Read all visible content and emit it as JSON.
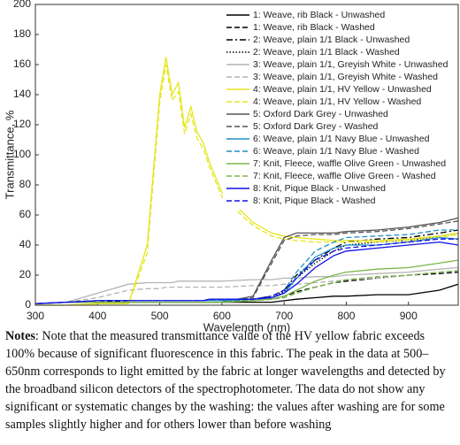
{
  "chart_data": {
    "type": "line",
    "ylabel": "Transmittance, %",
    "xlabel": "Wavelength (nm)",
    "xlim": [
      300,
      980
    ],
    "ylim": [
      0,
      200
    ],
    "xticks": [
      300,
      400,
      500,
      600,
      700,
      800,
      900
    ],
    "yticks": [
      0,
      20,
      40,
      60,
      80,
      100,
      120,
      140,
      160,
      180,
      200
    ],
    "legend": "upper right",
    "x": [
      300,
      350,
      400,
      450,
      480,
      500,
      510,
      520,
      530,
      540,
      550,
      560,
      570,
      580,
      600,
      650,
      680,
      700,
      720,
      750,
      780,
      800,
      850,
      900,
      950,
      980
    ],
    "series": [
      {
        "name": "1: Weave, rib Black - Unwashed",
        "color": "#000000",
        "dash": "solid",
        "values": [
          1,
          2,
          2,
          2,
          2,
          2,
          2,
          2,
          2,
          2,
          2,
          2,
          2,
          2,
          2,
          2,
          2,
          3,
          4,
          5,
          6,
          6,
          7,
          7,
          10,
          14
        ]
      },
      {
        "name": "1: Weave, rib Black - Washed",
        "color": "#000000",
        "dash": "dashed",
        "values": [
          1,
          2,
          2,
          3,
          3,
          3,
          3,
          3,
          3,
          3,
          3,
          3,
          3,
          3,
          3,
          3,
          4,
          6,
          9,
          12,
          15,
          16,
          18,
          20,
          21,
          22
        ]
      },
      {
        "name": "2: Weave, plain 1/1 Black - Unwashed",
        "color": "#000000",
        "dash": "dashdot",
        "values": [
          1,
          2,
          3,
          3,
          3,
          3,
          3,
          3,
          3,
          3,
          3,
          3,
          3,
          3,
          3,
          4,
          6,
          10,
          20,
          30,
          38,
          42,
          44,
          45,
          48,
          50
        ]
      },
      {
        "name": "2: Weave, plain 1/1 Black - Washed",
        "color": "#000000",
        "dash": "dotted",
        "values": [
          1,
          2,
          3,
          3,
          3,
          3,
          3,
          3,
          3,
          3,
          3,
          3,
          3,
          3,
          3,
          4,
          5,
          9,
          18,
          28,
          36,
          40,
          42,
          43,
          46,
          48
        ]
      },
      {
        "name": "3: Weave, plain 1/1, Greyish White - Unwashed",
        "color": "#b4b4b4",
        "dash": "solid",
        "values": [
          1,
          2,
          8,
          14,
          15,
          15,
          15,
          15,
          16,
          16,
          16,
          16,
          16,
          16,
          16,
          17,
          17,
          18,
          18,
          19,
          19,
          20,
          21,
          22,
          24,
          25
        ]
      },
      {
        "name": "3: Weave, plain 1/1, Greyish White - Washed",
        "color": "#b4b4b4",
        "dash": "dashed",
        "values": [
          1,
          2,
          5,
          10,
          11,
          11,
          12,
          12,
          12,
          12,
          12,
          12,
          12,
          12,
          12,
          13,
          13,
          14,
          14,
          15,
          16,
          17,
          18,
          20,
          22,
          23
        ]
      },
      {
        "name": "4: Weave, plain 1/1, HV Yellow - Unwashed",
        "color": "#e6e61e",
        "dash": "solid",
        "values": [
          0,
          0,
          1,
          1,
          40,
          140,
          165,
          140,
          148,
          118,
          132,
          115,
          108,
          95,
          75,
          55,
          48,
          46,
          45,
          44,
          43,
          43,
          43,
          44,
          46,
          48
        ]
      },
      {
        "name": "4: Weave, plain 1/1, HV Yellow - Washed",
        "color": "#e6e61e",
        "dash": "dashed",
        "values": [
          0,
          0,
          1,
          1,
          35,
          135,
          160,
          136,
          142,
          114,
          127,
          111,
          104,
          92,
          72,
          53,
          46,
          44,
          43,
          42,
          42,
          42,
          42,
          43,
          45,
          47
        ]
      },
      {
        "name": "5: Oxford Dark Grey - Unwashed",
        "color": "#555555",
        "dash": "solid",
        "values": [
          1,
          2,
          2,
          2,
          2,
          2,
          2,
          2,
          2,
          2,
          2,
          2,
          2,
          2,
          2,
          6,
          30,
          45,
          48,
          48,
          48,
          49,
          50,
          52,
          55,
          58
        ]
      },
      {
        "name": "5: Oxford Dark Grey - Washed",
        "color": "#555555",
        "dash": "dashed",
        "values": [
          1,
          2,
          2,
          2,
          2,
          2,
          2,
          2,
          2,
          2,
          2,
          2,
          2,
          2,
          2,
          5,
          28,
          43,
          46,
          47,
          47,
          48,
          49,
          51,
          54,
          56
        ]
      },
      {
        "name": "6: Weave, plain 1/1 Navy Blue - Unwashed",
        "color": "#1f8ec8",
        "dash": "solid",
        "values": [
          1,
          2,
          3,
          3,
          3,
          3,
          3,
          3,
          3,
          3,
          3,
          3,
          3,
          3,
          3,
          4,
          5,
          8,
          18,
          32,
          38,
          40,
          40,
          42,
          45,
          44
        ]
      },
      {
        "name": "6: Weave, plain 1/1 Navy Blue - Washed",
        "color": "#1f8ec8",
        "dash": "dashed",
        "values": [
          1,
          2,
          3,
          3,
          3,
          3,
          3,
          3,
          3,
          3,
          3,
          3,
          3,
          3,
          3,
          4,
          6,
          10,
          22,
          36,
          42,
          45,
          46,
          47,
          50,
          50
        ]
      },
      {
        "name": "7: Knit, Fleece, waffle Olive Green - Unwashed",
        "color": "#7ab648",
        "dash": "solid",
        "values": [
          1,
          2,
          2,
          2,
          2,
          2,
          2,
          2,
          2,
          2,
          2,
          2,
          2,
          2,
          2,
          3,
          4,
          6,
          10,
          16,
          20,
          22,
          24,
          25,
          28,
          30
        ]
      },
      {
        "name": "7: Knit, Fleece, waffle Olive Green - Washed",
        "color": "#7ab648",
        "dash": "dashed",
        "values": [
          1,
          2,
          2,
          2,
          2,
          2,
          2,
          2,
          2,
          2,
          2,
          2,
          2,
          2,
          2,
          3,
          4,
          5,
          8,
          12,
          15,
          17,
          19,
          20,
          22,
          23
        ]
      },
      {
        "name": "8: Knit, Pique Black - Unwashed",
        "color": "#1010e6",
        "dash": "solid",
        "values": [
          1,
          2,
          3,
          3,
          3,
          3,
          3,
          3,
          3,
          3,
          3,
          3,
          3,
          4,
          4,
          4,
          5,
          8,
          14,
          25,
          33,
          36,
          38,
          40,
          42,
          40
        ]
      },
      {
        "name": "8: Knit, Pique Black - Washed",
        "color": "#1010e6",
        "dash": "dashed",
        "values": [
          1,
          2,
          3,
          3,
          3,
          3,
          3,
          3,
          3,
          3,
          3,
          3,
          3,
          4,
          4,
          4,
          6,
          10,
          18,
          30,
          36,
          38,
          40,
          42,
          44,
          44
        ]
      }
    ]
  },
  "notes": {
    "label": "Notes",
    "text": ": Note that the measured transmittance value of the HV yellow fabric exceeds 100% because of significant fluorescence in this fabric. The peak in the data at 500– 650nm corresponds to light emitted by the fabric at longer wavelengths and detected by the broadband silicon detectors of the spectrophotometer. The data do not show any significant or systematic changes by the washing: the values after washing are for some samples slightly higher and for others lower than before washing"
  }
}
